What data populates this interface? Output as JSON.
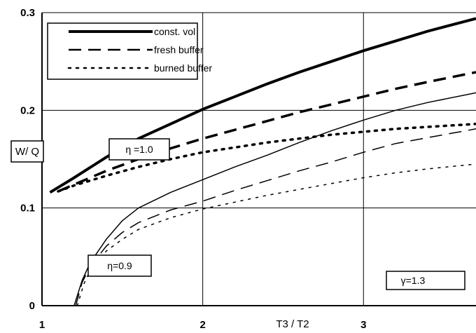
{
  "chart_data": {
    "type": "line",
    "title": "",
    "xlabel": "T3 / T2",
    "ylabel": "W/ Q",
    "xlim": [
      1,
      3.7
    ],
    "ylim": [
      0,
      0.3
    ],
    "x_ticks": [
      "1",
      "2",
      "3"
    ],
    "y_ticks": [
      "0",
      "0.1",
      "0.2",
      "0.3"
    ],
    "grid": true,
    "legend_position": "top-left",
    "legend": [
      "const. vol",
      "fresh buffer",
      "burned buffer"
    ],
    "annotations": [
      "η =1.0",
      "η=0.9",
      "γ=1.3"
    ],
    "series": [
      {
        "name": "const. vol",
        "eta": "1.0",
        "style": "solid",
        "weight": "thick",
        "x": [
          1.05,
          1.2,
          1.4,
          1.6,
          1.8,
          2.0,
          2.2,
          2.4,
          2.6,
          2.8,
          3.0,
          3.2,
          3.4,
          3.7
        ],
        "y": [
          0.116,
          0.131,
          0.152,
          0.171,
          0.186,
          0.201,
          0.214,
          0.227,
          0.239,
          0.25,
          0.261,
          0.271,
          0.281,
          0.294
        ]
      },
      {
        "name": "fresh buffer",
        "eta": "1.0",
        "style": "dash",
        "weight": "thick",
        "x": [
          1.1,
          1.2,
          1.4,
          1.6,
          1.8,
          2.0,
          2.2,
          2.4,
          2.6,
          2.8,
          3.0,
          3.2,
          3.4,
          3.7
        ],
        "y": [
          0.117,
          0.124,
          0.138,
          0.15,
          0.161,
          0.171,
          0.18,
          0.189,
          0.198,
          0.206,
          0.214,
          0.222,
          0.229,
          0.239
        ]
      },
      {
        "name": "burned buffer",
        "eta": "1.0",
        "style": "dot",
        "weight": "thick",
        "x": [
          1.1,
          1.2,
          1.4,
          1.6,
          1.8,
          2.0,
          2.2,
          2.4,
          2.6,
          2.8,
          3.0,
          3.2,
          3.4,
          3.7
        ],
        "y": [
          0.117,
          0.123,
          0.133,
          0.142,
          0.15,
          0.157,
          0.162,
          0.167,
          0.171,
          0.175,
          0.178,
          0.181,
          0.183,
          0.186
        ]
      },
      {
        "name": "const. vol",
        "eta": "0.9",
        "style": "solid",
        "weight": "thin",
        "x": [
          1.2,
          1.25,
          1.3,
          1.4,
          1.5,
          1.6,
          1.8,
          2.0,
          2.2,
          2.4,
          2.6,
          2.8,
          3.0,
          3.2,
          3.4,
          3.7
        ],
        "y": [
          0.0,
          0.026,
          0.044,
          0.068,
          0.087,
          0.1,
          0.116,
          0.129,
          0.142,
          0.154,
          0.167,
          0.179,
          0.19,
          0.2,
          0.208,
          0.218
        ]
      },
      {
        "name": "fresh buffer",
        "eta": "0.9",
        "style": "dash",
        "weight": "thin",
        "x": [
          1.21,
          1.25,
          1.3,
          1.4,
          1.5,
          1.6,
          1.8,
          2.0,
          2.2,
          2.4,
          2.6,
          2.8,
          3.0,
          3.2,
          3.4,
          3.7
        ],
        "y": [
          0.0,
          0.024,
          0.04,
          0.061,
          0.075,
          0.085,
          0.098,
          0.107,
          0.118,
          0.128,
          0.138,
          0.147,
          0.157,
          0.166,
          0.172,
          0.181
        ]
      },
      {
        "name": "burned buffer",
        "eta": "0.9",
        "style": "dot",
        "weight": "thin",
        "x": [
          1.22,
          1.26,
          1.3,
          1.4,
          1.5,
          1.6,
          1.8,
          2.0,
          2.2,
          2.4,
          2.6,
          2.8,
          3.0,
          3.2,
          3.4,
          3.7
        ],
        "y": [
          0.0,
          0.022,
          0.036,
          0.056,
          0.068,
          0.078,
          0.09,
          0.099,
          0.106,
          0.113,
          0.119,
          0.125,
          0.131,
          0.136,
          0.14,
          0.145
        ]
      }
    ]
  }
}
